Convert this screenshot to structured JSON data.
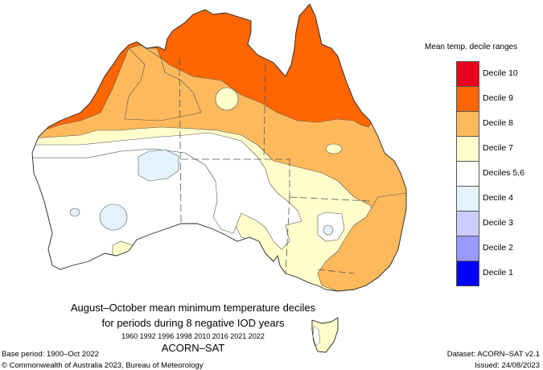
{
  "legend": {
    "title": "Mean temp. decile ranges",
    "items": [
      {
        "label": "Decile 10",
        "color": "#e8001e"
      },
      {
        "label": "Decile 9",
        "color": "#ff6600"
      },
      {
        "label": "Decile 8",
        "color": "#fdb95c"
      },
      {
        "label": "Decile 7",
        "color": "#ffffcc"
      },
      {
        "label": "Deciles 5,6",
        "color": "#ffffff"
      },
      {
        "label": "Decile 4",
        "color": "#e3f2fd"
      },
      {
        "label": "Decile 3",
        "color": "#ccccff"
      },
      {
        "label": "Decile 2",
        "color": "#9999ff"
      },
      {
        "label": "Decile 1",
        "color": "#0000ff"
      }
    ]
  },
  "title": {
    "line1": "August–October mean minimum temperature deciles",
    "line2": "for periods during 8 negative IOD years",
    "years": "1960 1992 1996 1998 2010 2016 2021 2022",
    "dataset_name": "ACORN–SAT"
  },
  "footer": {
    "base_period": "Base period: 1900–Oct 2022",
    "copyright": "© Commonwealth of Australia 2023, Bureau of Meteorology",
    "dataset": "Dataset: ACORN–SAT v2.1",
    "issued": "Issued: 24/08/2023"
  },
  "map": {
    "region": "Australia",
    "colors": {
      "decile9": "#ff6600",
      "decile8": "#fdb95c",
      "decile7": "#ffffcc",
      "decile56": "#ffffff",
      "decile4": "#e3f2fd",
      "outline": "#333333",
      "border": "#555555"
    }
  }
}
